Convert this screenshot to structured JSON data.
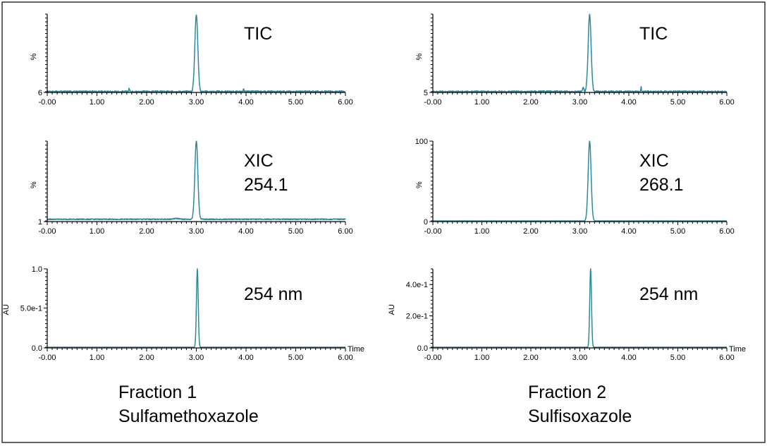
{
  "colors": {
    "trace": "#2a8b9c",
    "axis": "#000000",
    "background": "#ffffff"
  },
  "captions": [
    {
      "line1": "Fraction 1",
      "line2": "Sulfamethoxazole"
    },
    {
      "line1": "Fraction 2",
      "line2": "Sulfisoxazole"
    }
  ],
  "chart_data": [
    {
      "type": "line",
      "title": [
        "TIC"
      ],
      "ylabel": "%",
      "xlabel": "",
      "xlim": [
        0,
        6
      ],
      "ylim": [
        6,
        100
      ],
      "x_ticks": [
        "-0.00",
        "1.00",
        "2.00",
        "3.00",
        "4.00",
        "5.00",
        "6.00"
      ],
      "y_ticks": [
        {
          "value": 6,
          "label": "6"
        }
      ],
      "baseline": 6,
      "noise": 1.2,
      "peaks": [
        {
          "x": 3.0,
          "height": 100,
          "width": 0.03
        },
        {
          "x": 1.65,
          "height": 10,
          "width": 0.008
        },
        {
          "x": 3.95,
          "height": 9,
          "width": 0.008
        }
      ]
    },
    {
      "type": "line",
      "title": [
        "TIC"
      ],
      "ylabel": "%",
      "xlabel": "",
      "xlim": [
        0,
        6
      ],
      "ylim": [
        5,
        100
      ],
      "x_ticks": [
        "-0.00",
        "1.00",
        "2.00",
        "3.00",
        "4.00",
        "5.00",
        "6.00"
      ],
      "y_ticks": [
        {
          "value": 5,
          "label": "5"
        }
      ],
      "baseline": 5,
      "noise": 1.2,
      "peaks": [
        {
          "x": 3.2,
          "height": 100,
          "width": 0.03
        },
        {
          "x": 3.07,
          "height": 10,
          "width": 0.015
        },
        {
          "x": 4.25,
          "height": 11,
          "width": 0.006
        }
      ]
    },
    {
      "type": "line",
      "title": [
        "XIC",
        "254.1"
      ],
      "ylabel": "%",
      "xlabel": "",
      "xlim": [
        0,
        6
      ],
      "ylim": [
        1,
        100
      ],
      "x_ticks": [
        "-0.00",
        "1.00",
        "2.00",
        "3.00",
        "4.00",
        "5.00",
        "6.00"
      ],
      "y_ticks": [
        {
          "value": 1,
          "label": "1"
        }
      ],
      "baseline": 3,
      "noise": 0.6,
      "peaks": [
        {
          "x": 3.0,
          "height": 100,
          "width": 0.03
        },
        {
          "x": 2.6,
          "height": 4,
          "width": 0.06
        }
      ]
    },
    {
      "type": "line",
      "title": [
        "XIC",
        "268.1"
      ],
      "ylabel": "%",
      "xlabel": "",
      "xlim": [
        0,
        6
      ],
      "ylim": [
        0,
        100
      ],
      "x_ticks": [
        "-0.00",
        "1.00",
        "2.00",
        "3.00",
        "4.00",
        "5.00",
        "6.00"
      ],
      "y_ticks": [
        {
          "value": 0,
          "label": "0"
        },
        {
          "value": 100,
          "label": "100"
        }
      ],
      "baseline": 0,
      "noise": 0,
      "peaks": [
        {
          "x": 3.2,
          "height": 100,
          "width": 0.03
        }
      ]
    },
    {
      "type": "line",
      "title": [
        "254 nm"
      ],
      "ylabel": "AU",
      "xlabel": "Time",
      "xlim": [
        0,
        6
      ],
      "ylim": [
        0,
        1.0
      ],
      "x_ticks": [
        "-0.00",
        "1.00",
        "2.00",
        "3.00",
        "4.00",
        "5.00",
        "6.00"
      ],
      "y_ticks": [
        {
          "value": 0,
          "label": "0.0"
        },
        {
          "value": 0.5,
          "label": "5.0e-1"
        },
        {
          "value": 1.0,
          "label": "1.0"
        }
      ],
      "baseline": 0,
      "noise": 0,
      "peaks": [
        {
          "x": 3.02,
          "height": 1.0,
          "width": 0.018
        }
      ]
    },
    {
      "type": "line",
      "title": [
        "254 nm"
      ],
      "ylabel": "AU",
      "xlabel": "Time",
      "xlim": [
        0,
        6
      ],
      "ylim": [
        0,
        0.5
      ],
      "x_ticks": [
        "-0.00",
        "1.00",
        "2.00",
        "3.00",
        "4.00",
        "5.00",
        "6.00"
      ],
      "y_ticks": [
        {
          "value": 0,
          "label": "0.0"
        },
        {
          "value": 0.2,
          "label": "2.0e-1"
        },
        {
          "value": 0.4,
          "label": "4.0e-1"
        }
      ],
      "baseline": 0,
      "noise": 0,
      "peaks": [
        {
          "x": 3.22,
          "height": 0.5,
          "width": 0.018
        }
      ]
    }
  ]
}
